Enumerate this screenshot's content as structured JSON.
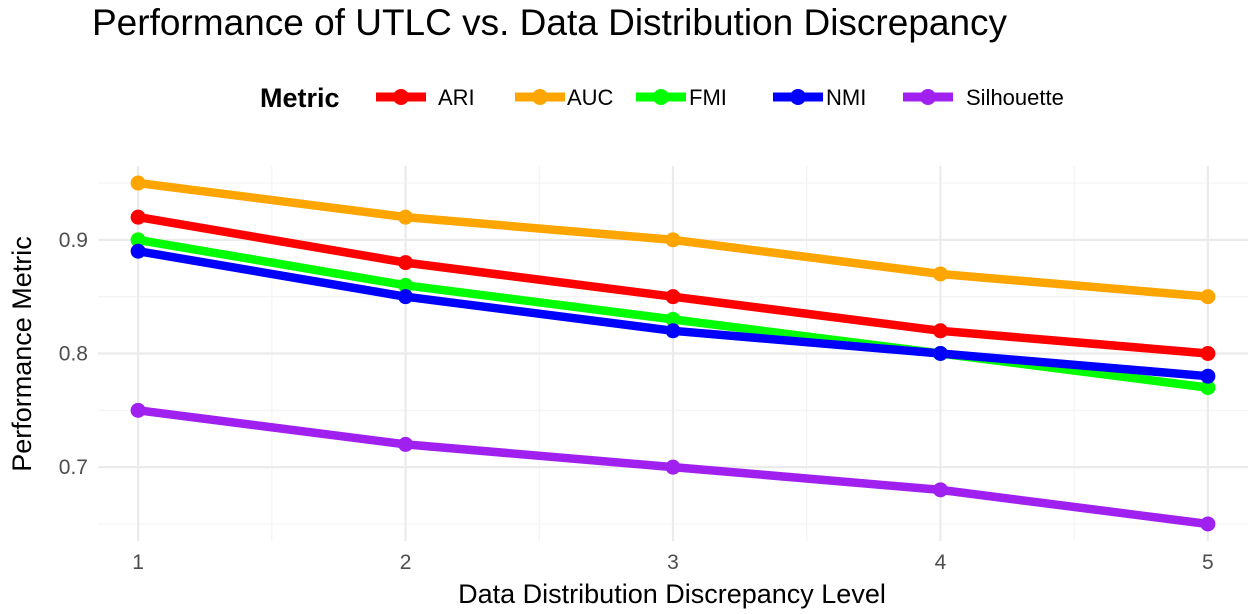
{
  "chart_data": {
    "type": "line",
    "title": "Performance of UTLC vs. Data Distribution Discrepancy",
    "xlabel": "Data Distribution Discrepancy Level",
    "ylabel": "Performance Metric",
    "x": [
      1,
      2,
      3,
      4,
      5
    ],
    "xticks": [
      "1",
      "2",
      "3",
      "4",
      "5"
    ],
    "yticks": [
      "0.7",
      "0.8",
      "0.9"
    ],
    "xlim": [
      0.85,
      5.15
    ],
    "ylim": [
      0.635,
      0.965
    ],
    "grid": true,
    "legend": {
      "title": "Metric",
      "placement": "top"
    },
    "series": [
      {
        "name": "ARI",
        "color": "#ff0000",
        "values": [
          0.92,
          0.88,
          0.85,
          0.82,
          0.8
        ]
      },
      {
        "name": "AUC",
        "color": "#ffa500",
        "values": [
          0.95,
          0.92,
          0.9,
          0.87,
          0.85
        ]
      },
      {
        "name": "FMI",
        "color": "#00ff00",
        "values": [
          0.9,
          0.86,
          0.83,
          0.8,
          0.77
        ]
      },
      {
        "name": "NMI",
        "color": "#0000ff",
        "values": [
          0.89,
          0.85,
          0.82,
          0.8,
          0.78
        ]
      },
      {
        "name": "Silhouette",
        "color": "#a020f0",
        "values": [
          0.75,
          0.72,
          0.7,
          0.68,
          0.65
        ]
      }
    ]
  }
}
